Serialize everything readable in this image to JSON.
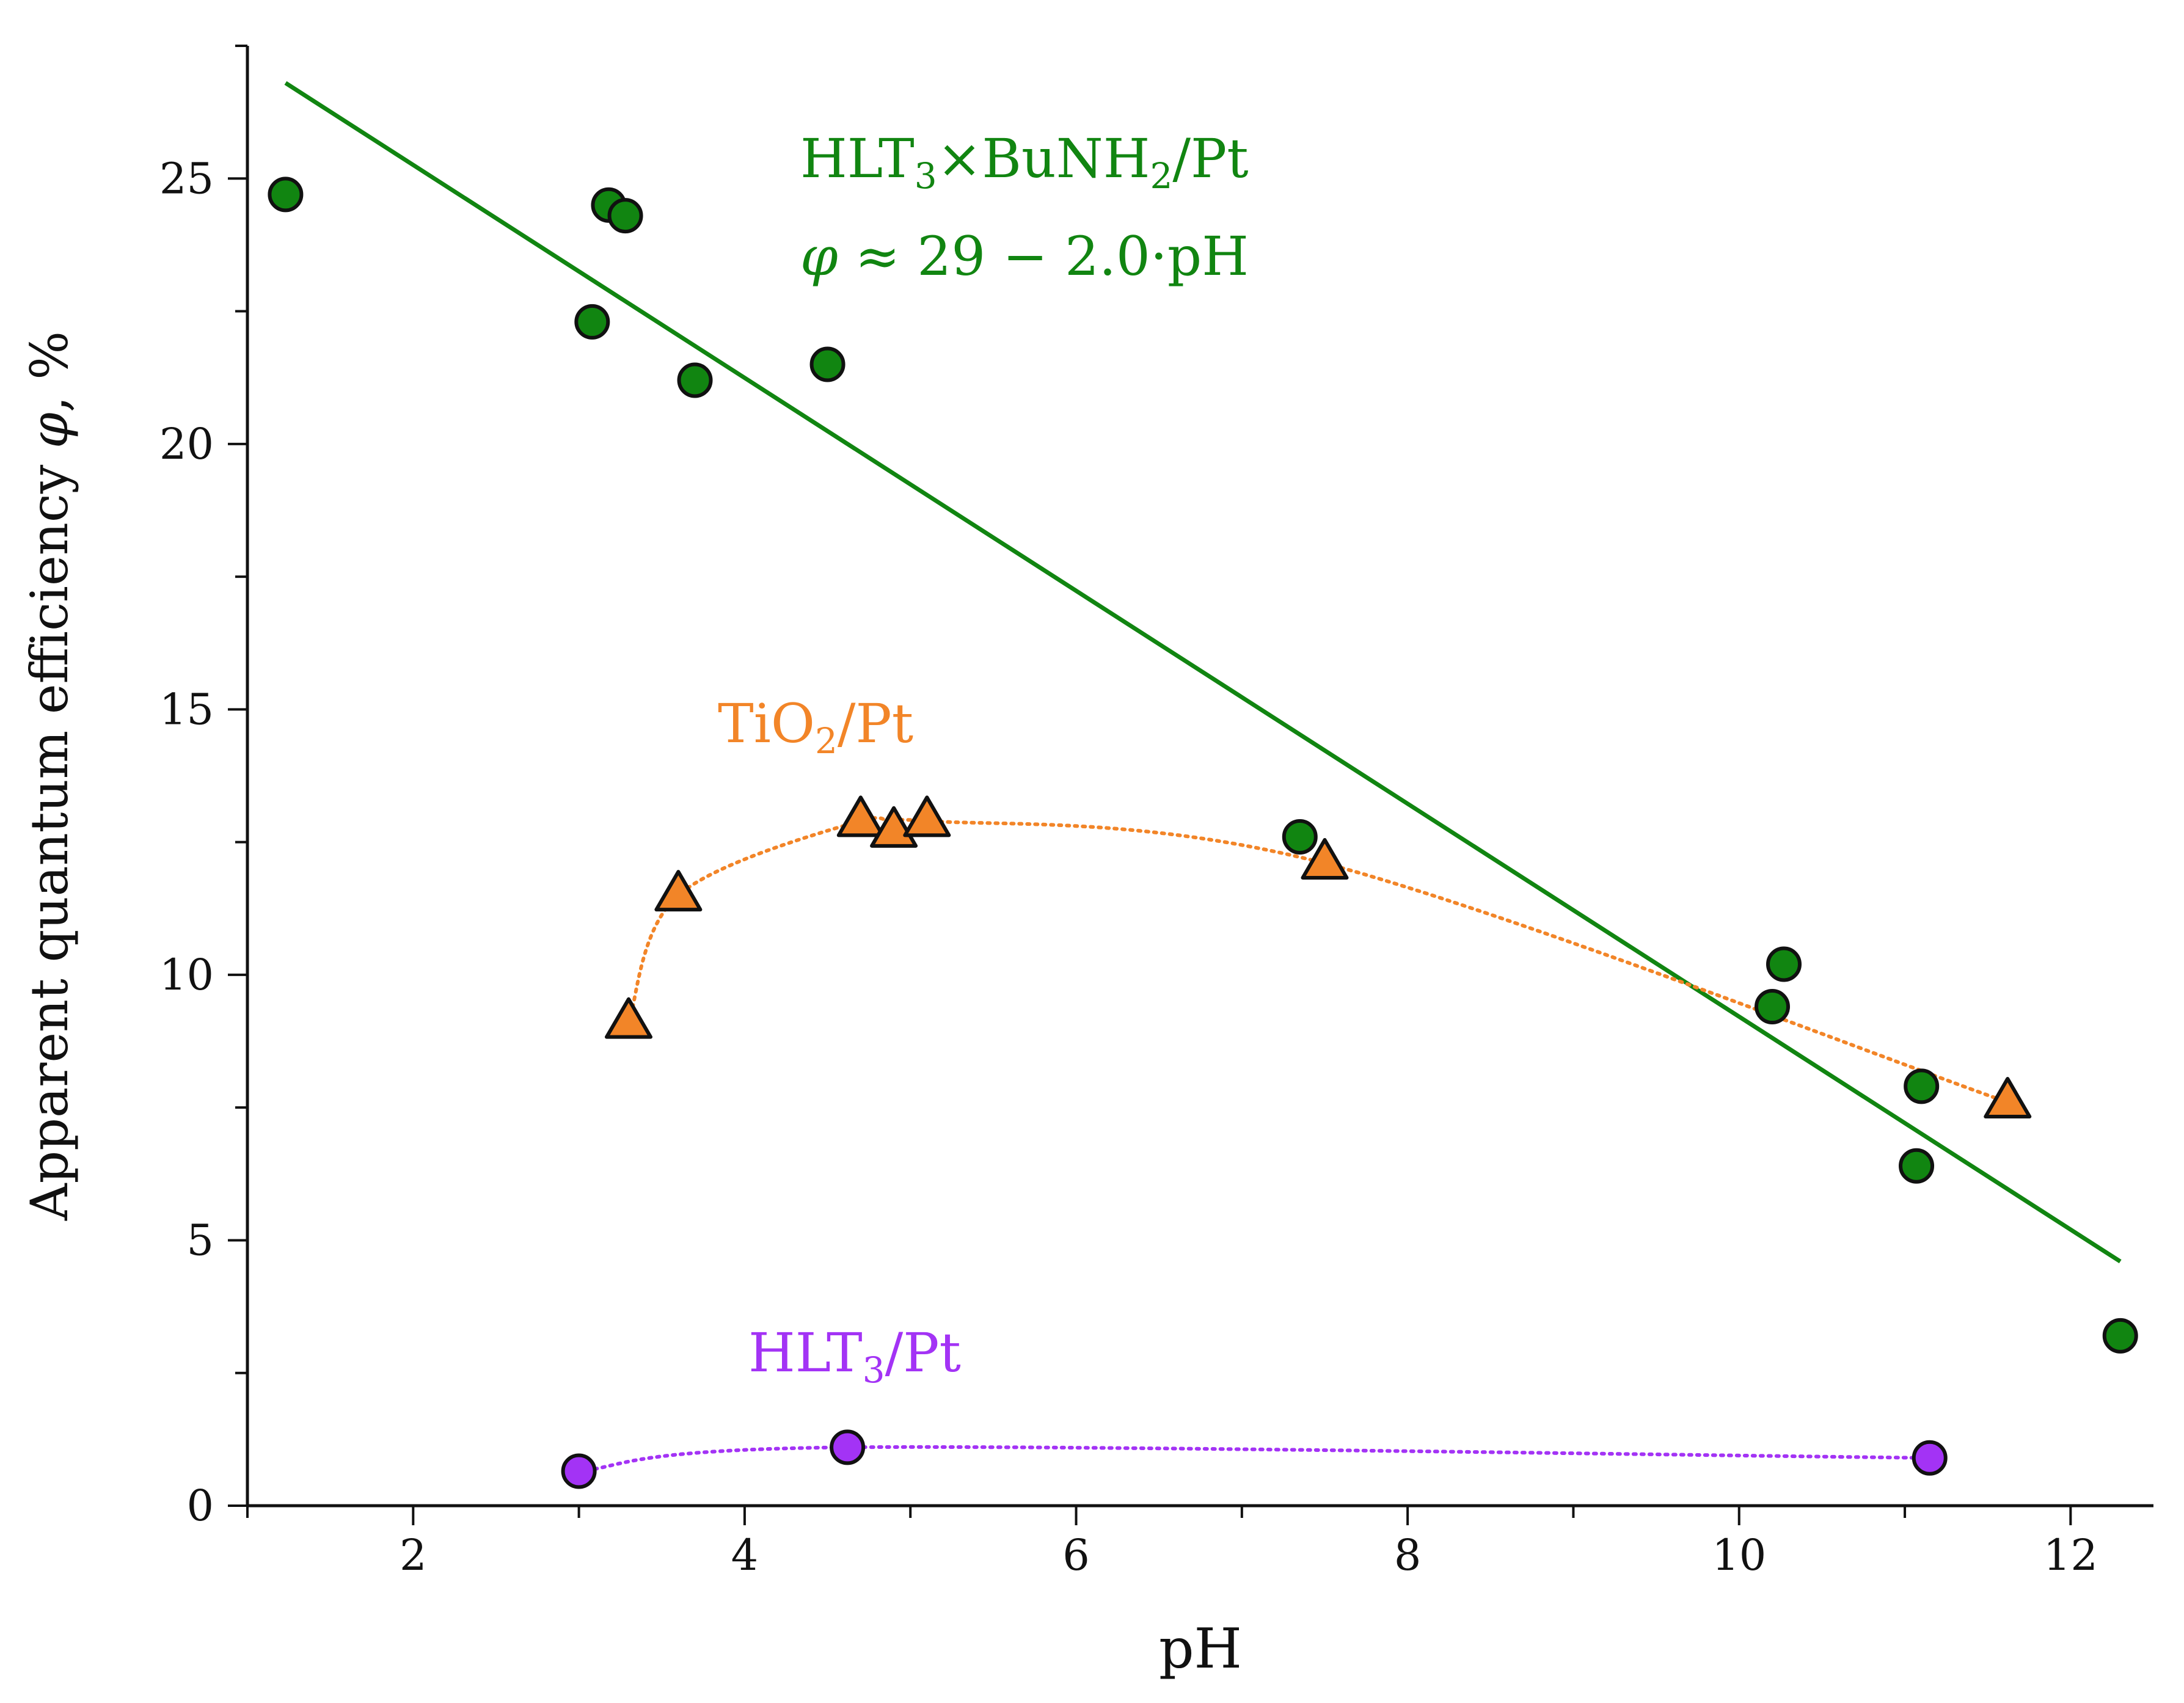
{
  "chart_data": {
    "type": "scatter",
    "xlabel": "pH",
    "ylabel": "Apparent quantum efficiency φ, %",
    "xlim": [
      1.0,
      12.5
    ],
    "ylim": [
      0,
      27.5
    ],
    "x_ticks": [
      2,
      4,
      6,
      8,
      10,
      12
    ],
    "y_ticks": [
      0,
      5,
      10,
      15,
      20,
      25
    ],
    "grid": false,
    "legend": "none",
    "series": [
      {
        "name": "HLT3×BuNH2/Pt",
        "label_main": "HLT",
        "label_sub1": "3",
        "label_mid": "×BuNH",
        "label_sub2": "2",
        "label_end": "/Pt",
        "color": "#118511",
        "marker": "circle",
        "connect": "none",
        "x": [
          1.23,
          3.08,
          3.18,
          3.28,
          3.7,
          4.5,
          7.35,
          10.2,
          10.27,
          11.07,
          11.1,
          12.3
        ],
        "y": [
          24.7,
          22.3,
          24.5,
          24.3,
          21.2,
          21.5,
          12.6,
          9.4,
          10.2,
          6.4,
          7.9,
          3.2
        ]
      },
      {
        "name": "TiO2/Pt",
        "label_main": "TiO",
        "label_sub1": "2",
        "label_end": "/Pt",
        "color": "#f28528",
        "marker": "triangle",
        "connect": "dotted",
        "x": [
          3.3,
          3.6,
          4.7,
          4.9,
          5.1,
          7.5,
          11.62
        ],
        "y": [
          9.1,
          11.5,
          12.9,
          12.7,
          12.9,
          12.1,
          7.6
        ]
      },
      {
        "name": "HLT3/Pt",
        "label_main": "HLT",
        "label_sub1": "3",
        "label_end": "/Pt",
        "color": "#a333f5",
        "marker": "circle",
        "connect": "dotted",
        "x": [
          3.0,
          4.62,
          11.15
        ],
        "y": [
          0.65,
          1.1,
          0.9
        ]
      }
    ],
    "fit_line": {
      "series": "HLT3×BuNH2/Pt",
      "equation_text": "φ ≈ 29 − 2.0·pH",
      "color": "#118511",
      "x": [
        1.23,
        12.3
      ],
      "y": [
        26.8,
        4.6
      ]
    }
  }
}
